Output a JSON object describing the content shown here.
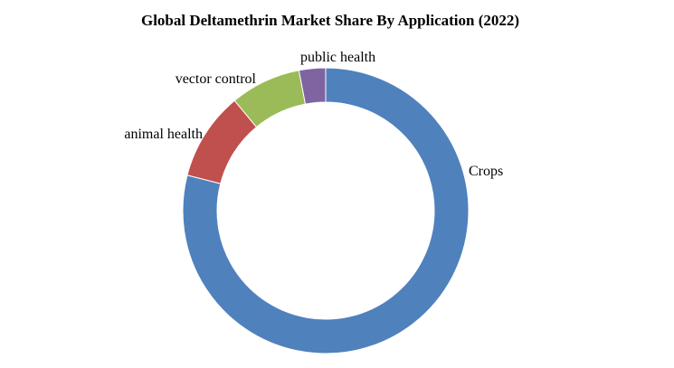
{
  "chart_data": {
    "type": "pie",
    "variant": "donut",
    "title": "Global Deltamethrin Market Share By Application (2022)",
    "categories": [
      "Crops",
      "animal health",
      "vector control",
      "public health"
    ],
    "values": [
      79,
      10,
      8,
      3
    ],
    "unit": "%",
    "colors": [
      "#4F81BD",
      "#C0504D",
      "#9BBB59",
      "#8064A2"
    ],
    "legend": "none",
    "labels": "outside"
  }
}
